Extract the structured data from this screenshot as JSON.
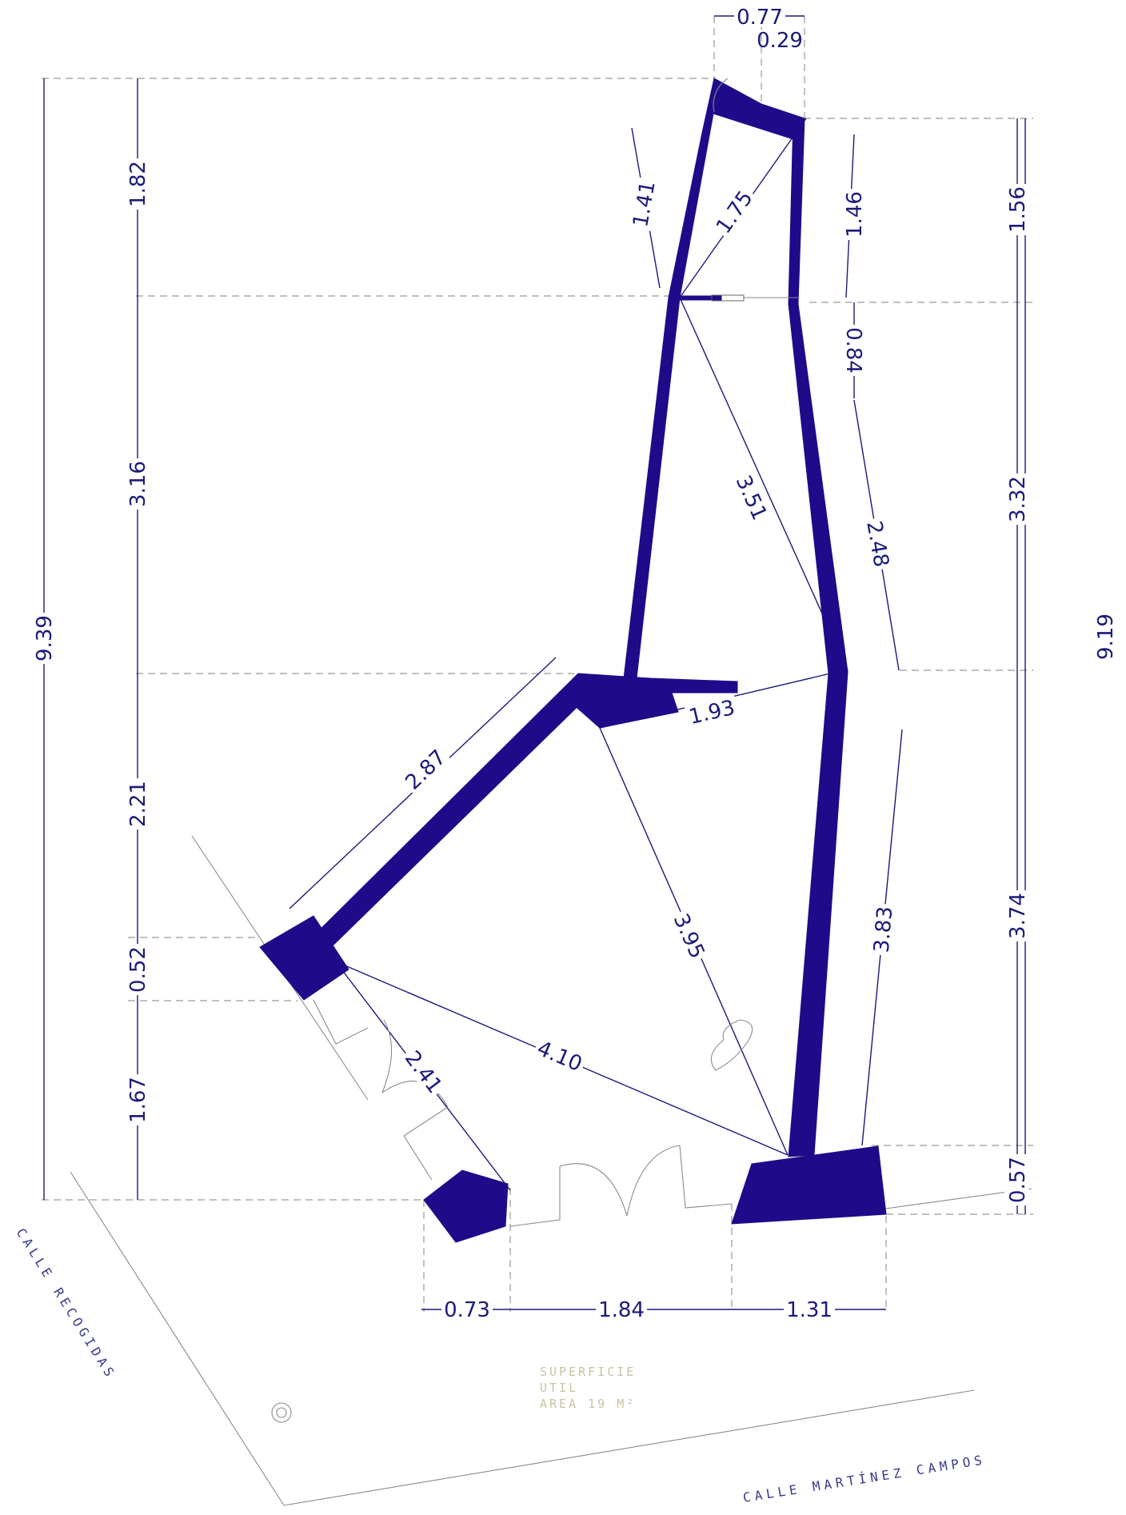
{
  "colors": {
    "wall": "#1f0a8a",
    "dimension": "#1a1a7a",
    "extension": "#9a9a9a",
    "street_label": "#3a3a8a",
    "area_label": "#c9c2a2"
  },
  "dimensions": {
    "top_077": "0.77",
    "top_029": "0.29",
    "left_182": "1.82",
    "left_316": "3.16",
    "left_221": "2.21",
    "left_052": "0.52",
    "left_167": "1.67",
    "left_total": "9.39",
    "right_156": "1.56",
    "right_332": "3.32",
    "right_374": "3.74",
    "right_057": "0.57",
    "right_total": "9.19",
    "wall_141": "1.41",
    "diag_175": "1.75",
    "wall_146": "1.46",
    "wall_084": "0.84",
    "diag_351": "3.51",
    "wall_248": "2.48",
    "diag_193": "1.93",
    "wall_287": "2.87",
    "diag_395": "3.95",
    "wall_383": "3.83",
    "diag_410": "4.10",
    "wall_241": "2.41",
    "bottom_073": "0.73",
    "bottom_184": "1.84",
    "bottom_131": "1.31"
  },
  "streets": {
    "recogidas": "CALLE RECOGIDAS",
    "martinez_campos": "CALLE MARTÍNEZ CAMPOS"
  },
  "area_label": {
    "line1": "SUPERFICIE",
    "line2": "UTIL",
    "line3": "AREA 19 M²"
  }
}
